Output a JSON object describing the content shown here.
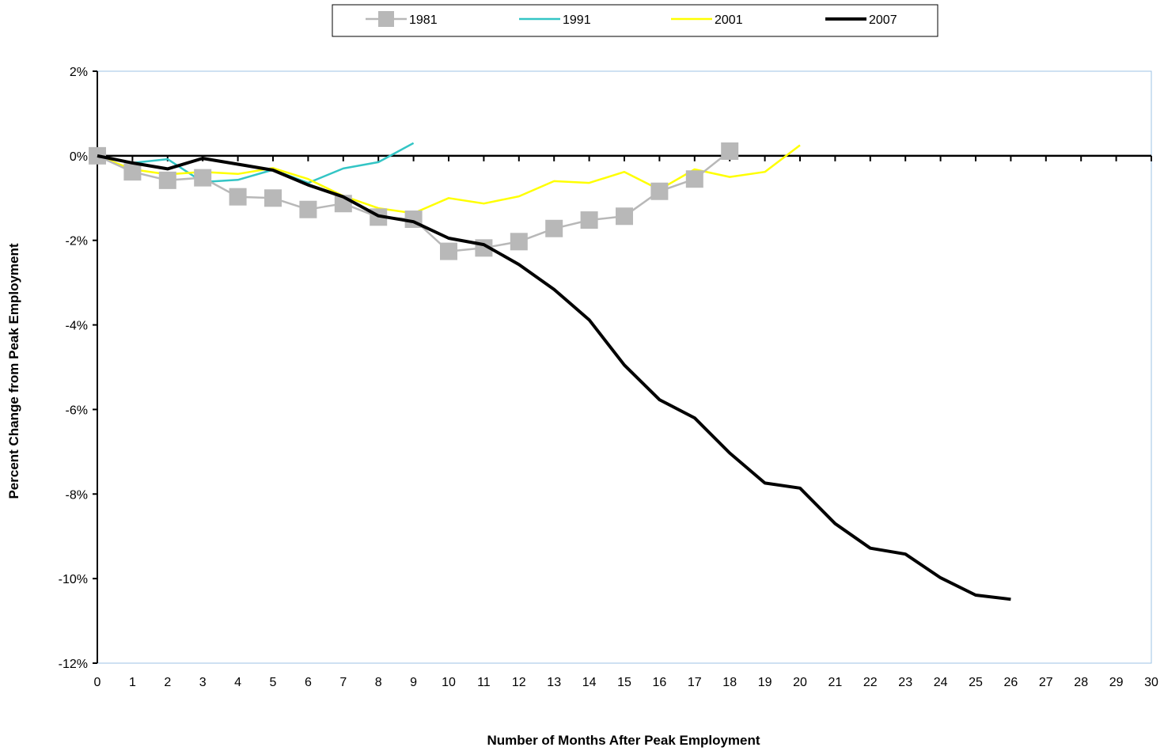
{
  "chart_data": {
    "type": "line",
    "xlabel": "Number of Months After Peak Employment",
    "ylabel": "Percent Change from Peak Employment",
    "xlim": [
      0,
      30
    ],
    "ylim": [
      -12,
      2
    ],
    "x_ticks": [
      0,
      1,
      2,
      3,
      4,
      5,
      6,
      7,
      8,
      9,
      10,
      11,
      12,
      13,
      14,
      15,
      16,
      17,
      18,
      19,
      20,
      21,
      22,
      23,
      24,
      25,
      26,
      27,
      28,
      29,
      30
    ],
    "y_ticks": [
      {
        "value": 2,
        "label": "2%"
      },
      {
        "value": 0,
        "label": "0%"
      },
      {
        "value": -2,
        "label": "-2%"
      },
      {
        "value": -4,
        "label": "-4%"
      },
      {
        "value": -6,
        "label": "-6%"
      },
      {
        "value": -8,
        "label": "-8%"
      },
      {
        "value": -10,
        "label": "-10%"
      },
      {
        "value": -12,
        "label": "-12%"
      }
    ],
    "legend_position": "top-center",
    "series": [
      {
        "name": "1981",
        "color": "#b8b8b8",
        "marker": "square",
        "x": [
          0,
          1,
          2,
          3,
          4,
          5,
          6,
          7,
          8,
          9,
          10,
          11,
          12,
          13,
          14,
          15,
          16,
          17,
          18
        ],
        "values": [
          0.0,
          -0.38,
          -0.58,
          -0.52,
          -0.97,
          -1.0,
          -1.27,
          -1.13,
          -1.45,
          -1.5,
          -2.26,
          -2.18,
          -2.03,
          -1.72,
          -1.52,
          -1.43,
          -0.84,
          -0.55,
          0.11
        ]
      },
      {
        "name": "1991",
        "color": "#33c5c5",
        "marker": "none",
        "x": [
          0,
          1,
          2,
          3,
          4,
          5,
          6,
          7,
          8,
          9
        ],
        "values": [
          0.0,
          -0.17,
          -0.08,
          -0.62,
          -0.57,
          -0.33,
          -0.64,
          -0.3,
          -0.15,
          0.3
        ]
      },
      {
        "name": "2001",
        "color": "#ffff00",
        "marker": "none",
        "x": [
          0,
          1,
          2,
          3,
          4,
          5,
          6,
          7,
          8,
          9,
          10,
          11,
          12,
          13,
          14,
          15,
          16,
          17,
          18,
          19,
          20
        ],
        "values": [
          0.0,
          -0.32,
          -0.44,
          -0.38,
          -0.43,
          -0.29,
          -0.55,
          -0.95,
          -1.24,
          -1.36,
          -1.0,
          -1.13,
          -0.96,
          -0.6,
          -0.64,
          -0.38,
          -0.8,
          -0.32,
          -0.5,
          -0.38,
          0.25
        ]
      },
      {
        "name": "2007",
        "color": "#000000",
        "marker": "none",
        "x": [
          0,
          1,
          2,
          3,
          4,
          5,
          6,
          7,
          8,
          9,
          10,
          11,
          12,
          13,
          14,
          15,
          16,
          17,
          18,
          19,
          20,
          21,
          22,
          23,
          24,
          25,
          26
        ],
        "values": [
          0.0,
          -0.17,
          -0.31,
          -0.06,
          -0.2,
          -0.34,
          -0.69,
          -0.97,
          -1.42,
          -1.56,
          -1.95,
          -2.1,
          -2.57,
          -3.16,
          -3.88,
          -4.95,
          -5.77,
          -6.2,
          -7.03,
          -7.74,
          -7.86,
          -8.7,
          -9.28,
          -9.42,
          -9.98,
          -10.39,
          -10.49
        ]
      }
    ]
  }
}
